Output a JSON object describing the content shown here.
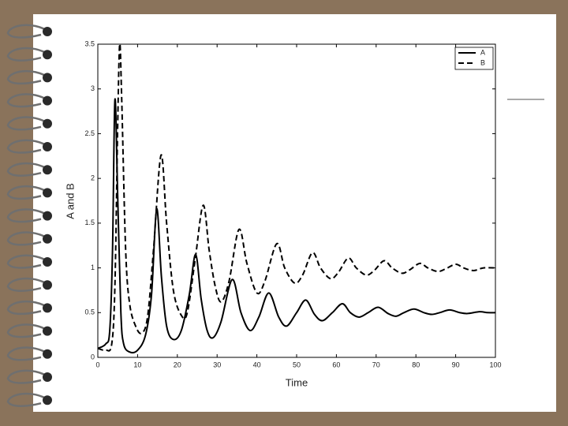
{
  "chart_data": {
    "type": "line",
    "xlabel": "Time",
    "ylabel": "A and B",
    "xlim": [
      0,
      100
    ],
    "ylim": [
      0,
      3.5
    ],
    "xticks": [
      0,
      10,
      20,
      30,
      40,
      50,
      60,
      70,
      80,
      90,
      100
    ],
    "yticks": [
      0,
      0.5,
      1,
      1.5,
      2,
      2.5,
      3,
      3.5
    ],
    "legend": "upper right",
    "series": [
      {
        "name": "A",
        "color": "#000000",
        "dash": "solid",
        "x": [
          0,
          2,
          3,
          3.7,
          4.3,
          5,
          5.8,
          6.5,
          8,
          10,
          12,
          13.5,
          14.8,
          16,
          17.3,
          19,
          21,
          23,
          24.6,
          26,
          27.5,
          29,
          31,
          33.8,
          36,
          38.3,
          40.5,
          43,
          45.5,
          47.5,
          50,
          52.3,
          54.5,
          56.5,
          59,
          61.5,
          63.5,
          65.7,
          68,
          70.5,
          73,
          75,
          77,
          79.5,
          82,
          84,
          86,
          88.5,
          91,
          93,
          96,
          98,
          100
        ],
        "values": [
          0.1,
          0.15,
          0.3,
          1.2,
          2.88,
          1.8,
          0.5,
          0.15,
          0.06,
          0.08,
          0.25,
          0.7,
          1.66,
          0.9,
          0.35,
          0.2,
          0.3,
          0.7,
          1.15,
          0.65,
          0.3,
          0.22,
          0.4,
          0.87,
          0.5,
          0.3,
          0.45,
          0.72,
          0.45,
          0.35,
          0.5,
          0.64,
          0.48,
          0.41,
          0.5,
          0.6,
          0.5,
          0.45,
          0.5,
          0.56,
          0.49,
          0.46,
          0.5,
          0.54,
          0.5,
          0.48,
          0.5,
          0.53,
          0.5,
          0.49,
          0.51,
          0.5,
          0.5
        ]
      },
      {
        "name": "B",
        "color": "#000000",
        "dash": "dashed",
        "x": [
          0,
          2,
          3.5,
          4.3,
          5,
          5.5,
          6,
          7,
          8,
          9.5,
          11,
          12.5,
          14,
          15.9,
          17.3,
          19,
          21,
          22.5,
          24.5,
          26.5,
          28,
          29.5,
          31,
          33,
          35.5,
          37.5,
          40,
          42,
          45,
          47,
          49.5,
          51.5,
          54,
          56,
          58.5,
          60.5,
          63,
          65,
          67.5,
          69.5,
          72,
          74,
          76.5,
          78.5,
          81,
          83,
          85.5,
          87.5,
          90,
          92,
          94.5,
          97,
          100
        ],
        "values": [
          0.1,
          0.08,
          0.15,
          0.8,
          2.6,
          3.5,
          2.9,
          1.2,
          0.6,
          0.35,
          0.27,
          0.45,
          1.2,
          2.26,
          1.5,
          0.75,
          0.47,
          0.5,
          1.1,
          1.7,
          1.2,
          0.8,
          0.62,
          0.85,
          1.43,
          1.05,
          0.72,
          0.85,
          1.27,
          1.0,
          0.83,
          0.92,
          1.17,
          1.0,
          0.88,
          0.95,
          1.11,
          1.0,
          0.92,
          0.97,
          1.08,
          1.0,
          0.94,
          0.98,
          1.05,
          1.0,
          0.96,
          0.99,
          1.04,
          1.0,
          0.97,
          1.0,
          1.0
        ]
      }
    ]
  }
}
